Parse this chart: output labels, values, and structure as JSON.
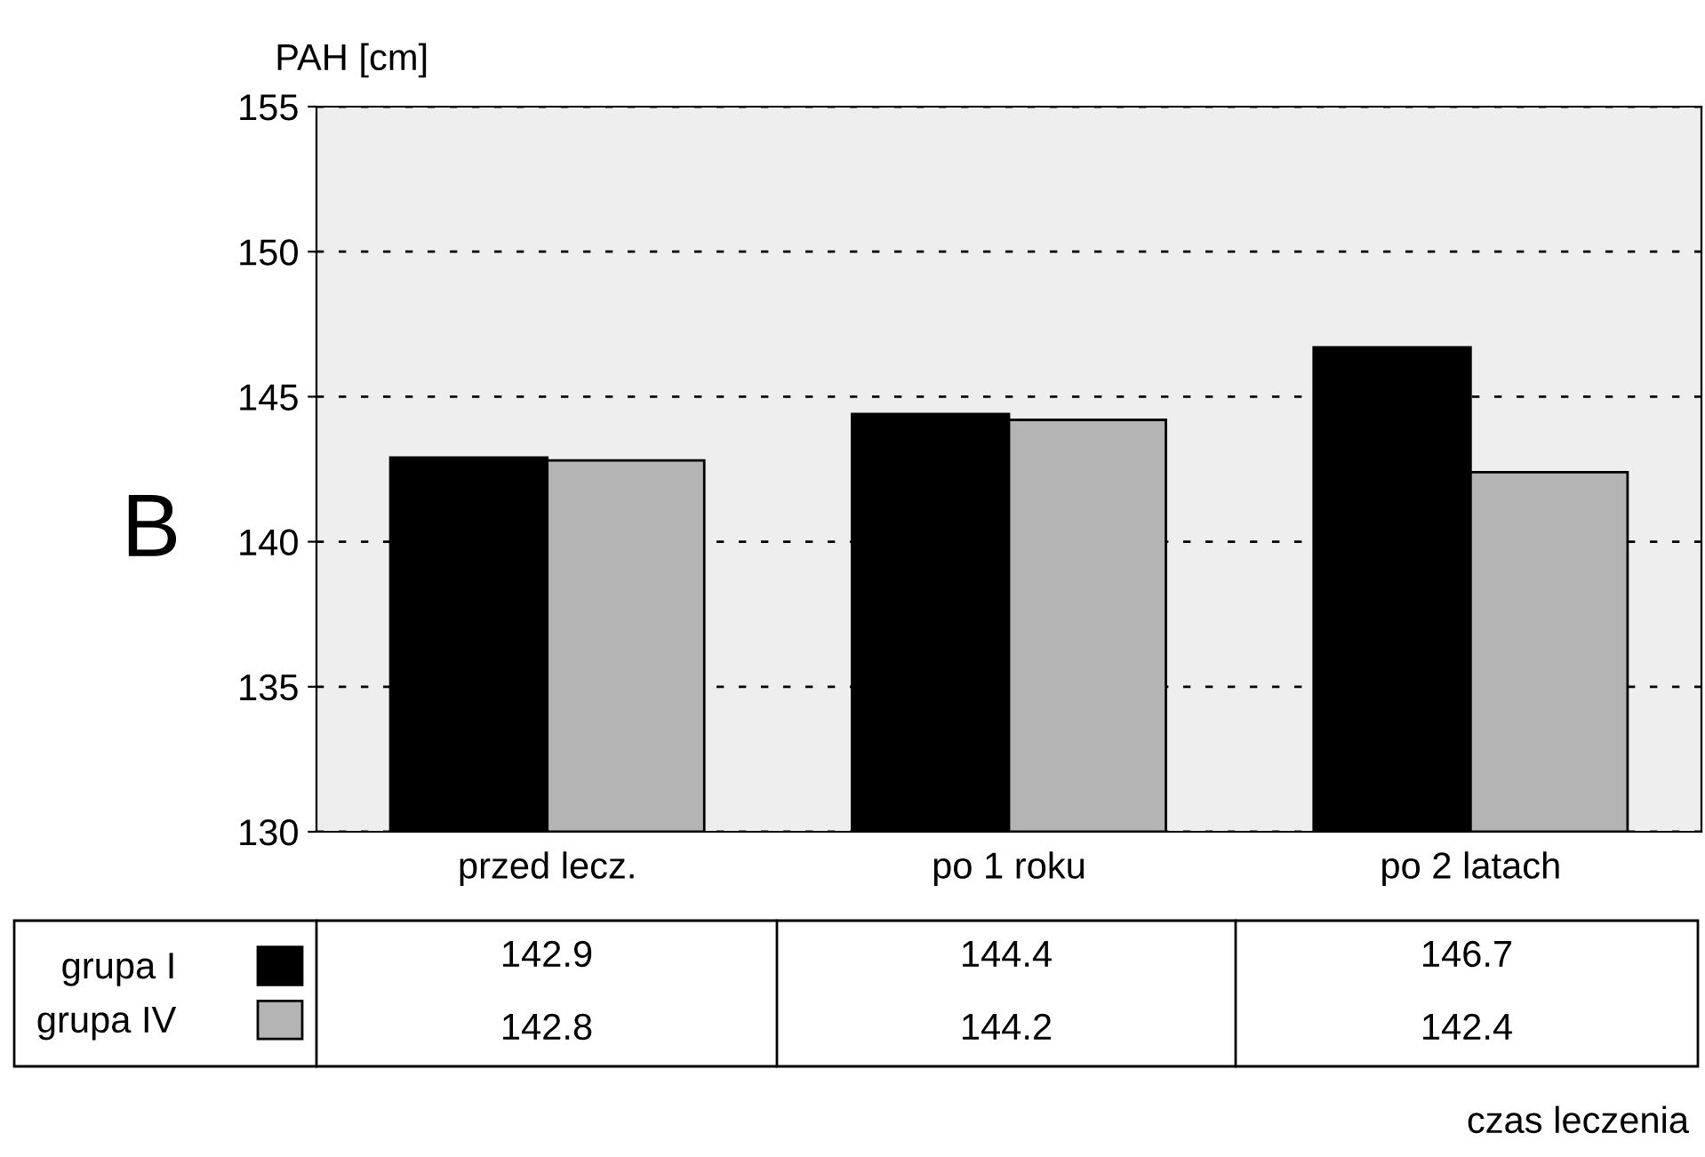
{
  "chart_data": {
    "type": "bar",
    "ylabel": "PAH [cm]",
    "annotations": [
      "B",
      "czas leczenia"
    ],
    "categories": [
      "przed lecz.",
      "po 1 roku",
      "po 2 latach"
    ],
    "series": [
      {
        "name": "grupa I",
        "color": "#000000",
        "values": [
          142.9,
          144.4,
          146.7
        ]
      },
      {
        "name": "grupa IV",
        "color": "#b4b4b4",
        "values": [
          142.8,
          144.2,
          142.4
        ]
      }
    ],
    "ylim": [
      130,
      155
    ],
    "yticks": [
      130,
      135,
      140,
      145,
      150,
      155
    ],
    "grid": "y",
    "line_style": "dashed",
    "data_labels": true,
    "legend": "bottom"
  }
}
